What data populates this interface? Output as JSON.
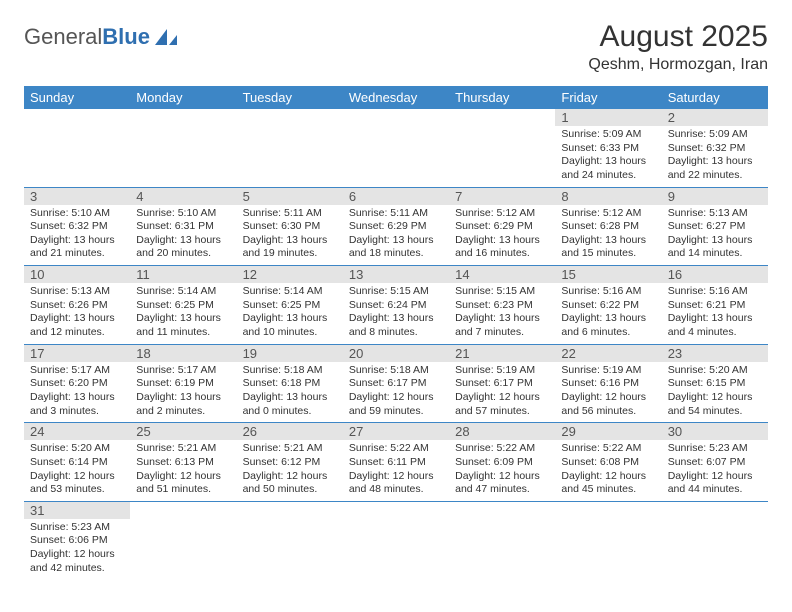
{
  "logo": {
    "text1": "General",
    "text2": "Blue"
  },
  "title": "August 2025",
  "location": "Qeshm, Hormozgan, Iran",
  "colors": {
    "header_bg": "#3d86c6",
    "header_text": "#ffffff",
    "daynum_bg": "#e4e4e4",
    "cell_border": "#3d86c6",
    "logo_gray": "#555555",
    "logo_blue": "#2f6fb0"
  },
  "weekdays": [
    "Sunday",
    "Monday",
    "Tuesday",
    "Wednesday",
    "Thursday",
    "Friday",
    "Saturday"
  ],
  "first_weekday_index": 5,
  "days": [
    {
      "n": 1,
      "sr": "5:09 AM",
      "ss": "6:33 PM",
      "dl": "13 hours and 24 minutes."
    },
    {
      "n": 2,
      "sr": "5:09 AM",
      "ss": "6:32 PM",
      "dl": "13 hours and 22 minutes."
    },
    {
      "n": 3,
      "sr": "5:10 AM",
      "ss": "6:32 PM",
      "dl": "13 hours and 21 minutes."
    },
    {
      "n": 4,
      "sr": "5:10 AM",
      "ss": "6:31 PM",
      "dl": "13 hours and 20 minutes."
    },
    {
      "n": 5,
      "sr": "5:11 AM",
      "ss": "6:30 PM",
      "dl": "13 hours and 19 minutes."
    },
    {
      "n": 6,
      "sr": "5:11 AM",
      "ss": "6:29 PM",
      "dl": "13 hours and 18 minutes."
    },
    {
      "n": 7,
      "sr": "5:12 AM",
      "ss": "6:29 PM",
      "dl": "13 hours and 16 minutes."
    },
    {
      "n": 8,
      "sr": "5:12 AM",
      "ss": "6:28 PM",
      "dl": "13 hours and 15 minutes."
    },
    {
      "n": 9,
      "sr": "5:13 AM",
      "ss": "6:27 PM",
      "dl": "13 hours and 14 minutes."
    },
    {
      "n": 10,
      "sr": "5:13 AM",
      "ss": "6:26 PM",
      "dl": "13 hours and 12 minutes."
    },
    {
      "n": 11,
      "sr": "5:14 AM",
      "ss": "6:25 PM",
      "dl": "13 hours and 11 minutes."
    },
    {
      "n": 12,
      "sr": "5:14 AM",
      "ss": "6:25 PM",
      "dl": "13 hours and 10 minutes."
    },
    {
      "n": 13,
      "sr": "5:15 AM",
      "ss": "6:24 PM",
      "dl": "13 hours and 8 minutes."
    },
    {
      "n": 14,
      "sr": "5:15 AM",
      "ss": "6:23 PM",
      "dl": "13 hours and 7 minutes."
    },
    {
      "n": 15,
      "sr": "5:16 AM",
      "ss": "6:22 PM",
      "dl": "13 hours and 6 minutes."
    },
    {
      "n": 16,
      "sr": "5:16 AM",
      "ss": "6:21 PM",
      "dl": "13 hours and 4 minutes."
    },
    {
      "n": 17,
      "sr": "5:17 AM",
      "ss": "6:20 PM",
      "dl": "13 hours and 3 minutes."
    },
    {
      "n": 18,
      "sr": "5:17 AM",
      "ss": "6:19 PM",
      "dl": "13 hours and 2 minutes."
    },
    {
      "n": 19,
      "sr": "5:18 AM",
      "ss": "6:18 PM",
      "dl": "13 hours and 0 minutes."
    },
    {
      "n": 20,
      "sr": "5:18 AM",
      "ss": "6:17 PM",
      "dl": "12 hours and 59 minutes."
    },
    {
      "n": 21,
      "sr": "5:19 AM",
      "ss": "6:17 PM",
      "dl": "12 hours and 57 minutes."
    },
    {
      "n": 22,
      "sr": "5:19 AM",
      "ss": "6:16 PM",
      "dl": "12 hours and 56 minutes."
    },
    {
      "n": 23,
      "sr": "5:20 AM",
      "ss": "6:15 PM",
      "dl": "12 hours and 54 minutes."
    },
    {
      "n": 24,
      "sr": "5:20 AM",
      "ss": "6:14 PM",
      "dl": "12 hours and 53 minutes."
    },
    {
      "n": 25,
      "sr": "5:21 AM",
      "ss": "6:13 PM",
      "dl": "12 hours and 51 minutes."
    },
    {
      "n": 26,
      "sr": "5:21 AM",
      "ss": "6:12 PM",
      "dl": "12 hours and 50 minutes."
    },
    {
      "n": 27,
      "sr": "5:22 AM",
      "ss": "6:11 PM",
      "dl": "12 hours and 48 minutes."
    },
    {
      "n": 28,
      "sr": "5:22 AM",
      "ss": "6:09 PM",
      "dl": "12 hours and 47 minutes."
    },
    {
      "n": 29,
      "sr": "5:22 AM",
      "ss": "6:08 PM",
      "dl": "12 hours and 45 minutes."
    },
    {
      "n": 30,
      "sr": "5:23 AM",
      "ss": "6:07 PM",
      "dl": "12 hours and 44 minutes."
    },
    {
      "n": 31,
      "sr": "5:23 AM",
      "ss": "6:06 PM",
      "dl": "12 hours and 42 minutes."
    }
  ],
  "labels": {
    "sunrise": "Sunrise: ",
    "sunset": "Sunset: ",
    "daylight": "Daylight: "
  }
}
